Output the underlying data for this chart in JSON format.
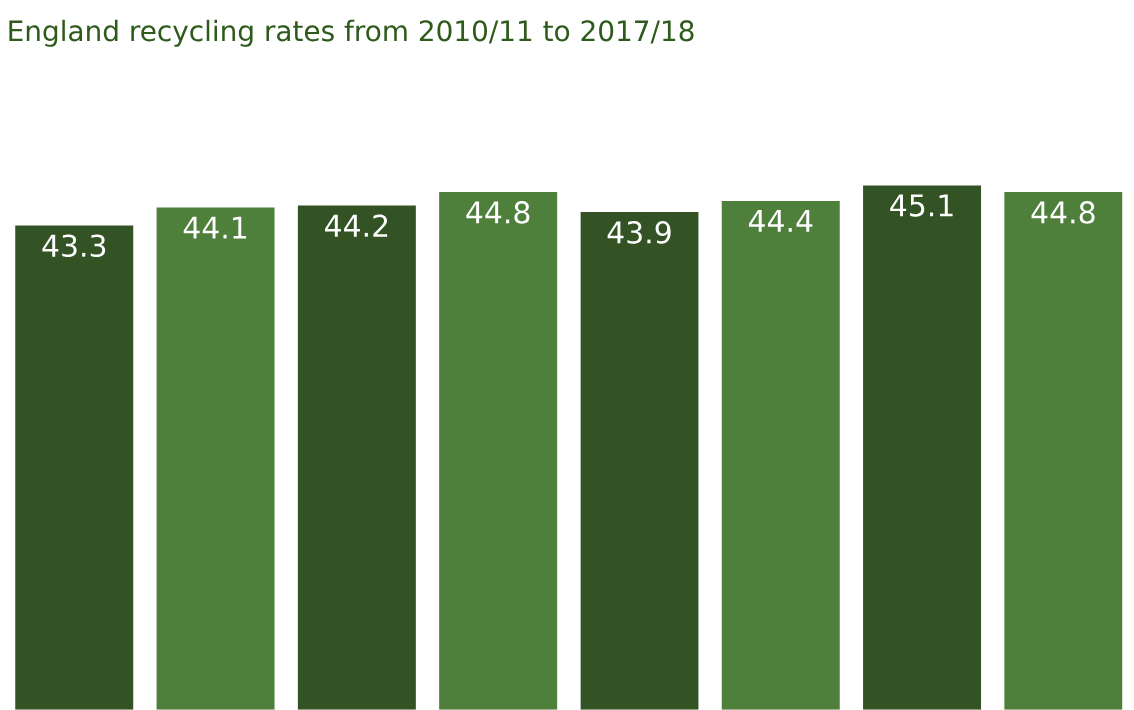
{
  "chart_data": {
    "type": "bar",
    "title": "England recycling rates from 2010/11 to 2017/18",
    "categories": [
      null,
      null,
      null,
      null,
      null,
      null,
      null,
      null
    ],
    "values": [
      43.3,
      44.1,
      44.2,
      44.8,
      43.9,
      44.4,
      45.1,
      44.8
    ],
    "colors": [
      "#345325",
      "#4e7f3b",
      "#345325",
      "#4e7f3b",
      "#345325",
      "#4e7f3b",
      "#345325",
      "#4e7f3b"
    ],
    "ylim": [
      21.5,
      45.1
    ],
    "data_labels": true
  }
}
